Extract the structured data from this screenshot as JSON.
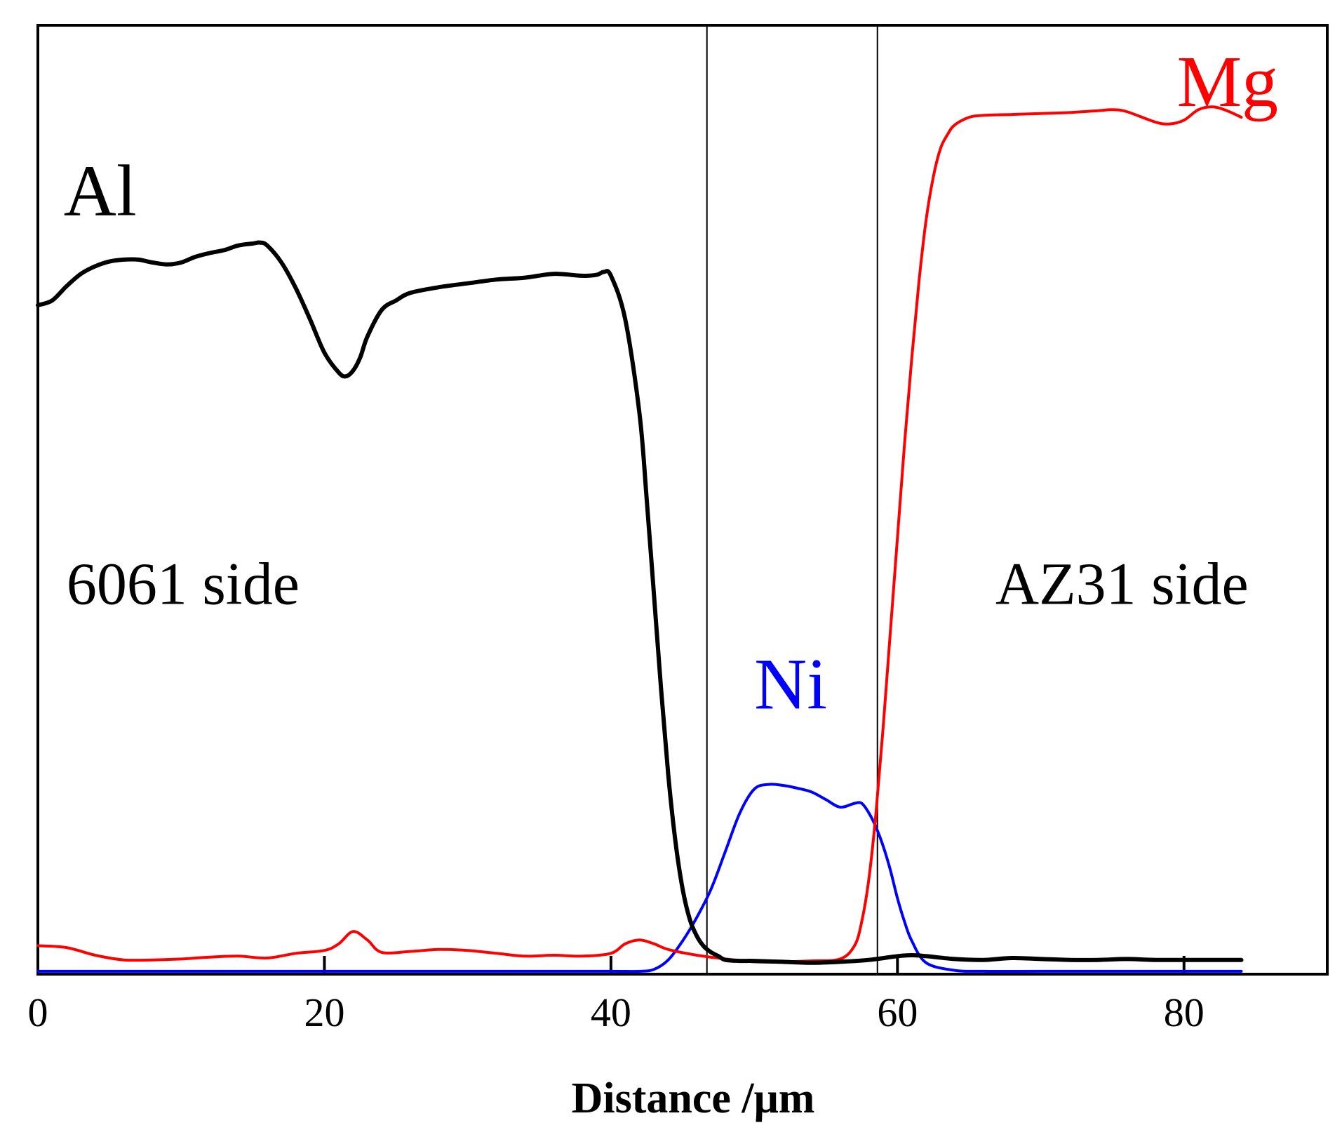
{
  "chart_data": {
    "type": "line",
    "title": "",
    "xlabel": "Distance /μm",
    "ylabel": "",
    "xlim": [
      0,
      90
    ],
    "ylim": [
      0,
      100
    ],
    "x_ticks": [
      0,
      20,
      40,
      60,
      80
    ],
    "x_tick_labels": [
      "0",
      "20",
      "40",
      "60",
      "80"
    ],
    "grid": false,
    "y_axis_ticks": false,
    "interface_lines_x": [
      46.7,
      58.6
    ],
    "annotations": [
      {
        "key": "al_side",
        "text": "6061 side",
        "x": 2,
        "y": 39
      },
      {
        "key": "mg_side",
        "text": "AZ31 side",
        "x": 84.5,
        "y": 39
      }
    ],
    "series": [
      {
        "name": "Al",
        "color": "#000000",
        "label_pos": [
          1.8,
          80
        ],
        "x": [
          0,
          1,
          2,
          3,
          4,
          5,
          6,
          7,
          8,
          9,
          10,
          11,
          12,
          13,
          14,
          15,
          15.5,
          16,
          17,
          18,
          19,
          20,
          21,
          21.5,
          22,
          22.5,
          23,
          24,
          25,
          26,
          28,
          30,
          32,
          34,
          36,
          38,
          39,
          39.5,
          40,
          41,
          42,
          42.5,
          43,
          43.5,
          44,
          44.5,
          45,
          45.5,
          46,
          46.5,
          47,
          47.5,
          48,
          49,
          50,
          52,
          54,
          56,
          58,
          60,
          61,
          62,
          64,
          66,
          68,
          70,
          72,
          74,
          76,
          78,
          80,
          82,
          84
        ],
        "values": [
          70.5,
          71.0,
          72.5,
          73.8,
          74.6,
          75.1,
          75.3,
          75.3,
          75.0,
          74.8,
          75.0,
          75.6,
          76.0,
          76.3,
          76.8,
          77.0,
          77.1,
          76.8,
          75.0,
          72.3,
          69.0,
          65.5,
          63.4,
          63.0,
          63.6,
          65.0,
          67.2,
          70.0,
          71.0,
          71.8,
          72.4,
          72.8,
          73.2,
          73.4,
          73.8,
          73.6,
          73.7,
          74.0,
          73.6,
          69.0,
          59.0,
          50.0,
          40.0,
          30.0,
          21.0,
          14.0,
          9.0,
          5.8,
          4.0,
          2.9,
          2.3,
          1.9,
          1.5,
          1.4,
          1.4,
          1.3,
          1.2,
          1.3,
          1.5,
          1.9,
          2.0,
          1.9,
          1.6,
          1.5,
          1.7,
          1.6,
          1.5,
          1.5,
          1.6,
          1.5,
          1.5,
          1.5,
          1.5
        ]
      },
      {
        "name": "Mg",
        "color": "#ff0000",
        "label_pos": [
          79.5,
          91.5
        ],
        "x": [
          0,
          2,
          4,
          6,
          8,
          10,
          12,
          14,
          16,
          18,
          20,
          21,
          22,
          23,
          24,
          26,
          28,
          30,
          32,
          34,
          36,
          38,
          40,
          41,
          42,
          43,
          44,
          46,
          48,
          50,
          52,
          54,
          56,
          57,
          57.5,
          58,
          58.5,
          59,
          59.5,
          60,
          60.5,
          61,
          61.5,
          62,
          62.5,
          63,
          63.5,
          64,
          65,
          66,
          68,
          70,
          72,
          74,
          75,
          76,
          78,
          79,
          80,
          81,
          82,
          83,
          84
        ],
        "values": [
          3.0,
          2.8,
          2.0,
          1.5,
          1.5,
          1.6,
          1.8,
          1.9,
          1.7,
          2.2,
          2.5,
          3.2,
          4.5,
          3.6,
          2.3,
          2.4,
          2.6,
          2.5,
          2.2,
          1.9,
          2.0,
          1.9,
          2.2,
          3.2,
          3.6,
          3.2,
          2.6,
          2.0,
          1.6,
          1.3,
          1.3,
          1.4,
          1.6,
          3.0,
          5.5,
          10.0,
          17.0,
          26.0,
          36.0,
          46.0,
          56.0,
          65.0,
          73.0,
          79.5,
          84.0,
          87.0,
          88.5,
          89.5,
          90.3,
          90.5,
          90.6,
          90.7,
          90.8,
          91.0,
          91.1,
          90.9,
          89.8,
          89.6,
          90.0,
          91.1,
          91.4,
          91.0,
          90.3
        ]
      },
      {
        "name": "Ni",
        "color": "#0000ff",
        "label_pos": [
          50,
          28
        ],
        "x": [
          0,
          5,
          10,
          15,
          20,
          25,
          30,
          35,
          40,
          42,
          43,
          44,
          45,
          46,
          47,
          48,
          49,
          50,
          51,
          52,
          53,
          54,
          55,
          56,
          57,
          57.5,
          58,
          58.5,
          59,
          59.5,
          60,
          60.5,
          61,
          62,
          64,
          66,
          70,
          75,
          80,
          84
        ],
        "values": [
          0.3,
          0.3,
          0.3,
          0.3,
          0.3,
          0.3,
          0.3,
          0.3,
          0.3,
          0.3,
          0.5,
          1.5,
          3.5,
          6.0,
          9.0,
          13.0,
          17.0,
          19.5,
          20.0,
          19.9,
          19.6,
          19.2,
          18.4,
          17.6,
          18.0,
          18.0,
          17.0,
          15.5,
          13.5,
          11.0,
          8.0,
          5.5,
          3.5,
          1.2,
          0.4,
          0.3,
          0.3,
          0.3,
          0.3,
          0.3
        ]
      }
    ]
  }
}
